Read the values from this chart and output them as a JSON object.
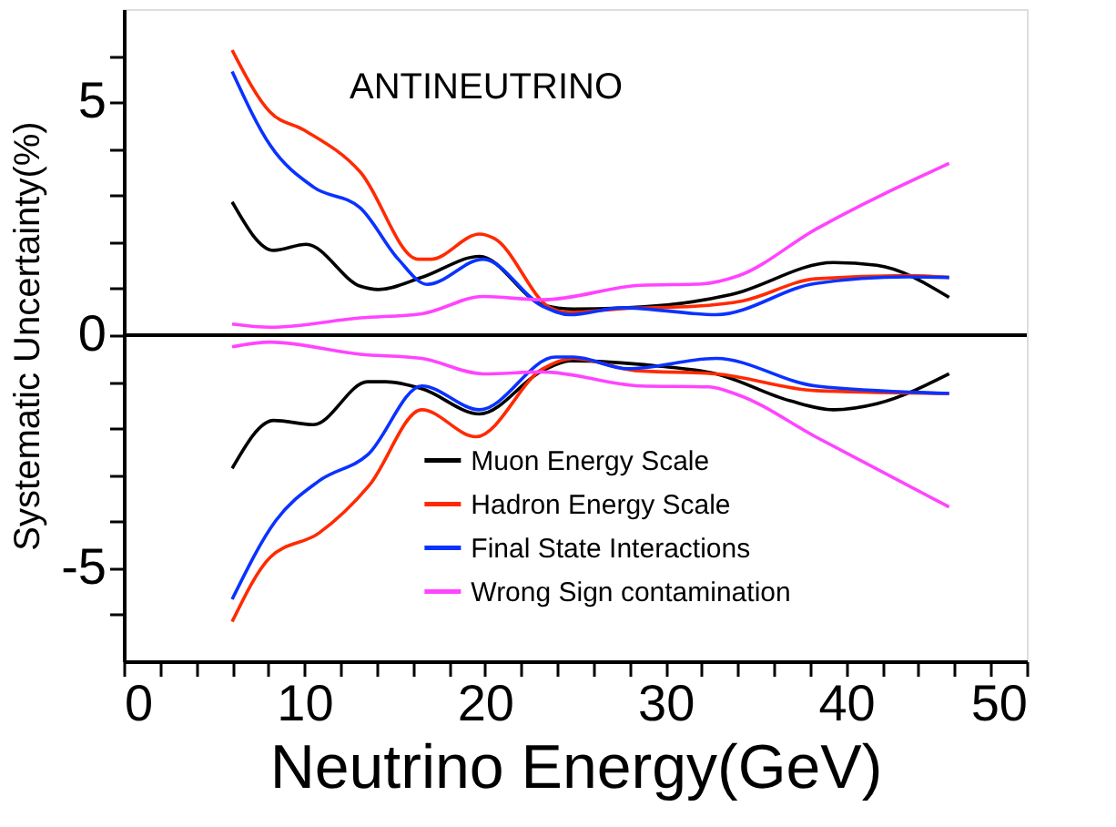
{
  "chart_data": {
    "type": "line",
    "xlabel": "Neutrino Energy(GeV)",
    "ylabel": "Systematic Uncertainty(%)",
    "annotations": [
      "ANTINEUTRINO"
    ],
    "xlim": [
      0,
      50
    ],
    "ylim": [
      -7,
      7
    ],
    "xticks": [
      0,
      {
        "value": 2,
        "label": null
      },
      {
        "value": 4,
        "label": null
      },
      {
        "value": 6,
        "label": null
      },
      {
        "value": 8,
        "label": null
      },
      10,
      {
        "value": 12,
        "label": null
      },
      {
        "value": 14,
        "label": null
      },
      {
        "value": 16,
        "label": null
      },
      {
        "value": 18,
        "label": null
      },
      20,
      {
        "value": 22,
        "label": null
      },
      {
        "value": 24,
        "label": null
      },
      {
        "value": 26,
        "label": null
      },
      {
        "value": 28,
        "label": null
      },
      30,
      {
        "value": 32,
        "label": null
      },
      {
        "value": 34,
        "label": null
      },
      {
        "value": 36,
        "label": null
      },
      {
        "value": 38,
        "label": null
      },
      40,
      {
        "value": 42,
        "label": null
      },
      {
        "value": 44,
        "label": null
      },
      {
        "value": 46,
        "label": null
      },
      {
        "value": 48,
        "label": null
      },
      50
    ],
    "yticks": [
      {
        "value": -6,
        "label": null
      },
      -5,
      {
        "value": -4,
        "label": null
      },
      {
        "value": -3,
        "label": null
      },
      {
        "value": -2,
        "label": null
      },
      {
        "value": -1,
        "label": null
      },
      0,
      {
        "value": 1,
        "label": null
      },
      {
        "value": 2,
        "label": null
      },
      {
        "value": 3,
        "label": null
      },
      {
        "value": 4,
        "label": null
      },
      5,
      {
        "value": 6,
        "label": null
      }
    ],
    "ref_lines": [
      {
        "axis": "y",
        "value": 0,
        "color": "#000000"
      }
    ],
    "grid": false,
    "legend": "bottom",
    "marker": "none",
    "line_style": "solid",
    "series": [
      {
        "name": "Muon Energy Scale",
        "color": "#000000",
        "x": [
          6,
          8.3,
          10.1,
          13.1,
          14.1,
          16.5,
          19.7,
          23.2,
          24.9,
          30.1,
          33.6,
          39.3,
          41.7,
          45.7
        ],
        "values": [
          2.86,
          1.82,
          1.95,
          1.05,
          0.98,
          1.24,
          1.69,
          0.65,
          0.56,
          0.65,
          0.87,
          1.56,
          1.5,
          0.81
        ]
      },
      {
        "name": "Hadron Energy Scale",
        "color": "#ff2a00",
        "x": [
          6,
          8.1,
          10,
          13.1,
          16.3,
          17,
          19.7,
          20.5,
          23.6,
          24.6,
          27.6,
          31.6,
          34.3,
          38.3,
          43.4,
          45.7
        ],
        "values": [
          6.12,
          4.79,
          4.4,
          3.5,
          1.63,
          1.63,
          2.17,
          2.08,
          0.59,
          0.49,
          0.57,
          0.62,
          0.74,
          1.21,
          1.28,
          1.24
        ]
      },
      {
        "name": "Final State Interactions",
        "color": "#0a32ff",
        "x": [
          6,
          8.1,
          10.5,
          13.1,
          15.2,
          16.8,
          19.9,
          23.2,
          24.7,
          27.6,
          32.8,
          38.3,
          43.4,
          45.7
        ],
        "values": [
          5.66,
          4.08,
          3.18,
          2.73,
          1.63,
          1.09,
          1.63,
          0.62,
          0.44,
          0.59,
          0.44,
          1.11,
          1.25,
          1.24
        ]
      },
      {
        "name": "Wrong Sign contamination",
        "color": "#ff44ff",
        "x": [
          6,
          8.1,
          13.1,
          16.5,
          19.9,
          23.2,
          28.6,
          32,
          34,
          38.3,
          45.7
        ],
        "values": [
          0.24,
          0.17,
          0.37,
          0.46,
          0.83,
          0.76,
          1.07,
          1.1,
          1.27,
          2.27,
          3.69
        ]
      },
      {
        "color": "#000000",
        "x": [
          6,
          8.3,
          10.5,
          13.5,
          14.5,
          16.5,
          19.7,
          23.2,
          24.7,
          29.5,
          32.8,
          36.9,
          39.3,
          41.7,
          45.7
        ],
        "values": [
          -2.86,
          -1.83,
          -1.92,
          -1.0,
          -1.0,
          -1.15,
          -1.69,
          -0.76,
          -0.55,
          -0.66,
          -0.83,
          -1.41,
          -1.6,
          -1.47,
          -0.83
        ]
      },
      {
        "color": "#ff2a00",
        "x": [
          6,
          8.1,
          10.8,
          13.6,
          16.5,
          19.5,
          23.2,
          24.9,
          28.3,
          32.8,
          38.3,
          45.7
        ],
        "values": [
          -6.15,
          -4.77,
          -4.25,
          -3.22,
          -1.6,
          -2.18,
          -0.72,
          -0.5,
          -0.76,
          -0.83,
          -1.19,
          -1.25
        ]
      },
      {
        "color": "#0a32ff",
        "x": [
          6,
          8.4,
          10.8,
          13.5,
          16.5,
          19.7,
          23.9,
          24.9,
          27.9,
          32.8,
          38.3,
          45.7
        ],
        "values": [
          -5.67,
          -3.99,
          -3.13,
          -2.57,
          -1.09,
          -1.6,
          -0.47,
          -0.47,
          -0.72,
          -0.5,
          -1.09,
          -1.25
        ]
      },
      {
        "color": "#ff44ff",
        "x": [
          6,
          8.1,
          13.1,
          16.5,
          19.9,
          23.2,
          28.6,
          32.4,
          34,
          38.3,
          45.7
        ],
        "values": [
          -0.25,
          -0.15,
          -0.41,
          -0.5,
          -0.83,
          -0.79,
          -1.09,
          -1.11,
          -1.28,
          -2.18,
          -3.69
        ]
      }
    ]
  }
}
